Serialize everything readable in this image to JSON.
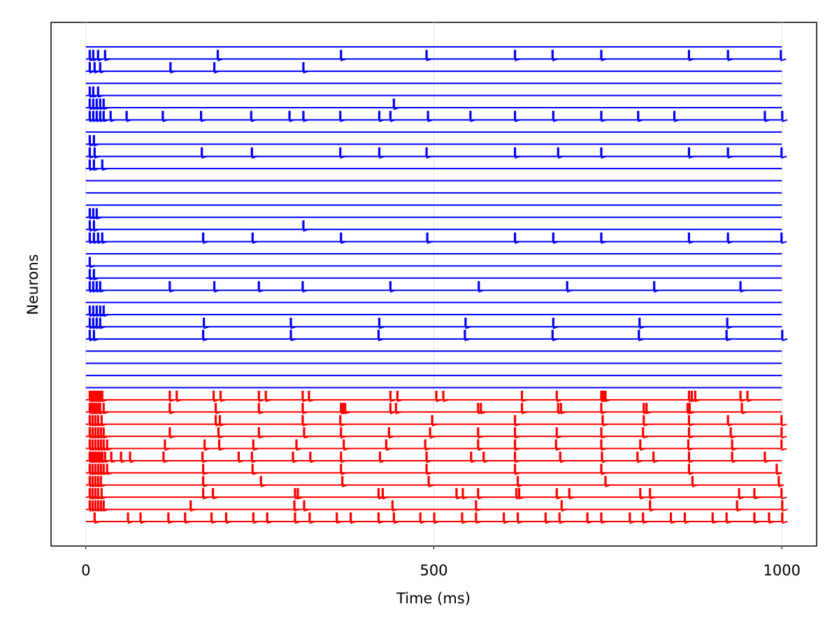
{
  "chart_data": {
    "type": "spike_traces",
    "xlabel": "Time (ms)",
    "ylabel": "Neurons",
    "xlim": [
      -50,
      1050
    ],
    "xticks": [
      0,
      500,
      1000
    ],
    "grid": true,
    "series": [
      {
        "color": "#0000ff",
        "spikes": [
          [],
          [
            5,
            10,
            17,
            27,
            189,
            366,
            489,
            616,
            670,
            740,
            866,
            922,
            998
          ],
          [
            5,
            12,
            20,
            121,
            184,
            312
          ],
          [],
          [
            5,
            10,
            17
          ],
          [
            5,
            10,
            15,
            20,
            25,
            442
          ],
          [
            5,
            10,
            15,
            20,
            25,
            35,
            58,
            110,
            165,
            237,
            292,
            312,
            365,
            421,
            437,
            491,
            552,
            616,
            671,
            740,
            793,
            845,
            975,
            1000
          ],
          [],
          [
            5,
            11
          ],
          [
            5,
            12,
            166,
            238,
            365,
            421,
            489,
            616,
            678,
            740,
            866,
            922,
            999
          ],
          [
            5,
            11,
            23
          ],
          [],
          [],
          [],
          [
            5,
            10,
            15
          ],
          [
            5,
            11,
            312
          ],
          [
            5,
            11,
            17,
            23,
            168,
            239,
            366,
            490,
            616,
            671,
            740,
            866,
            922,
            999
          ],
          [],
          [
            5
          ],
          [
            5,
            11
          ],
          [
            5,
            10,
            15,
            20,
            120,
            184,
            248,
            311,
            437,
            564,
            691,
            816,
            940
          ],
          [],
          [
            5,
            10,
            15,
            20,
            25
          ],
          [
            5,
            10,
            15,
            20,
            169,
            294,
            421,
            545,
            671,
            795,
            921
          ],
          [
            5,
            11,
            168,
            294,
            420,
            544,
            670,
            794,
            920,
            1000
          ],
          [],
          [],
          [],
          []
        ]
      },
      {
        "color": "#ff0000",
        "spikes": [
          [
            5,
            8,
            11,
            14,
            17,
            20,
            23,
            120,
            130,
            183,
            193,
            248,
            258,
            311,
            320,
            437,
            447,
            503,
            513,
            626,
            676,
            740,
            743,
            746,
            866,
            870,
            875,
            940,
            950
          ],
          [
            5,
            8,
            11,
            14,
            17,
            20,
            25,
            120,
            186,
            248,
            311,
            366,
            369,
            372,
            437,
            445,
            563,
            567,
            626,
            678,
            682,
            740,
            801,
            805,
            864,
            867,
            942
          ],
          [
            5,
            9,
            13,
            17,
            22,
            186,
            192,
            311,
            365,
            497,
            616,
            742,
            801,
            866,
            922,
            999
          ],
          [
            5,
            9,
            13,
            17,
            21,
            25,
            120,
            190,
            248,
            313,
            366,
            435,
            494,
            563,
            616,
            676,
            740,
            800,
            866,
            926,
            999
          ],
          [
            5,
            9,
            13,
            17,
            21,
            25,
            30,
            113,
            170,
            191,
            240,
            302,
            370,
            431,
            487,
            563,
            616,
            675,
            740,
            796,
            865,
            928,
            999
          ],
          [
            5,
            8,
            11,
            14,
            17,
            20,
            23,
            27,
            36,
            50,
            63,
            111,
            167,
            219,
            238,
            297,
            322,
            366,
            422,
            489,
            553,
            571,
            616,
            681,
            741,
            792,
            815,
            866,
            928,
            975
          ],
          [
            5,
            9,
            13,
            17,
            21,
            25,
            30,
            168,
            239,
            366,
            489,
            616,
            740,
            866,
            992
          ],
          [
            5,
            9,
            13,
            17,
            21,
            168,
            251,
            368,
            492,
            620,
            746,
            871,
            995
          ],
          [
            5,
            9,
            13,
            17,
            22,
            168,
            182,
            300,
            304,
            420,
            426,
            532,
            541,
            563,
            618,
            622,
            676,
            694,
            796,
            810,
            938,
            960,
            999
          ],
          [
            5,
            9,
            13,
            17,
            21,
            25,
            150,
            299,
            313,
            440,
            560,
            683,
            810,
            935,
            1000
          ],
          [
            12,
            60,
            78,
            118,
            142,
            180,
            201,
            240,
            260,
            300,
            321,
            360,
            380,
            420,
            442,
            480,
            500,
            540,
            560,
            600,
            620,
            660,
            680,
            720,
            740,
            781,
            800,
            840,
            860,
            900,
            920,
            960,
            981,
            1000
          ]
        ]
      }
    ]
  }
}
